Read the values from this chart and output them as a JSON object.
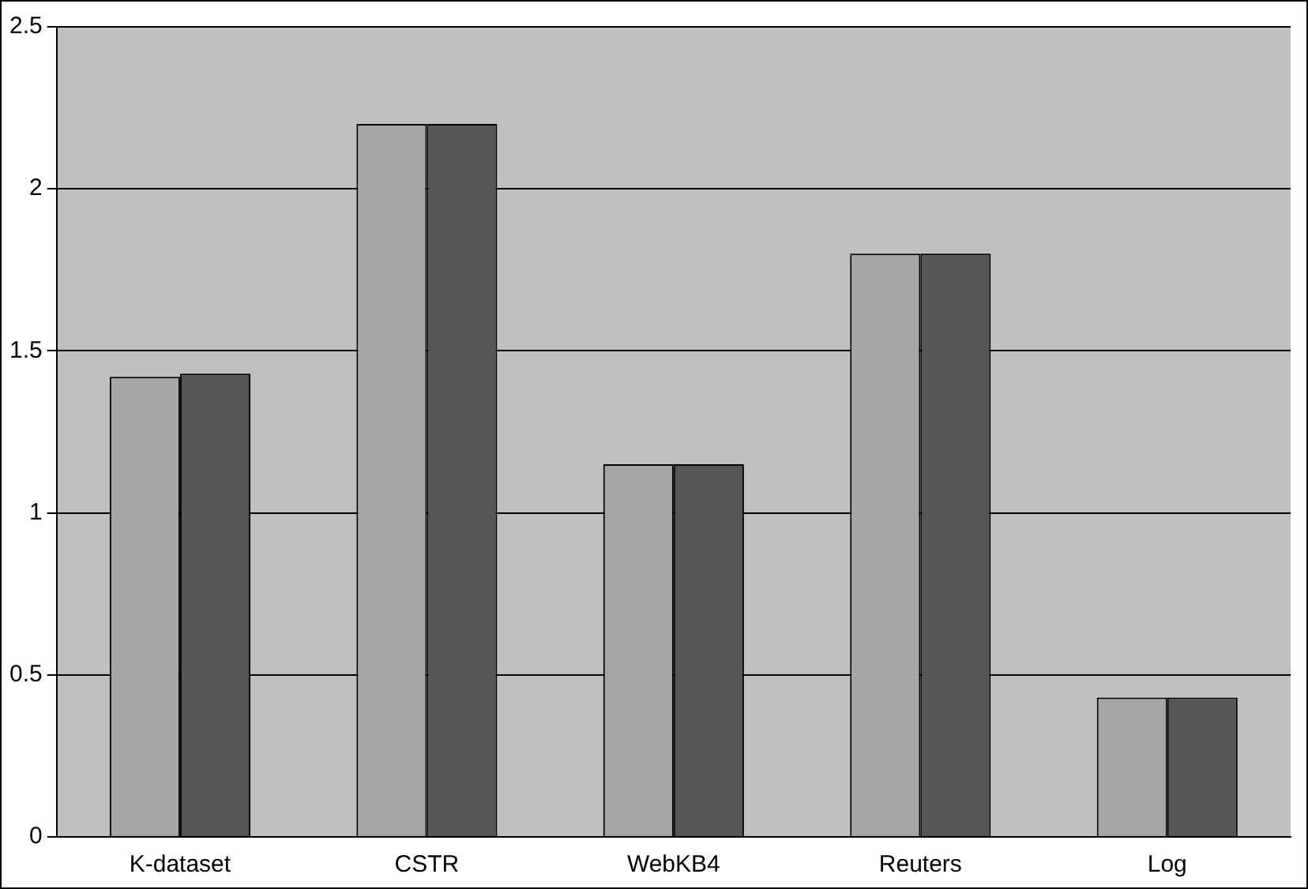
{
  "chart_data": {
    "type": "bar",
    "categories": [
      "K-dataset",
      "CSTR",
      "WebKB4",
      "Reuters",
      "Log"
    ],
    "series": [
      {
        "color": "#a6a6a6",
        "values": [
          1.42,
          2.2,
          1.15,
          1.8,
          0.43
        ]
      },
      {
        "color": "#555555",
        "values": [
          1.43,
          2.2,
          1.15,
          1.8,
          0.43
        ]
      }
    ],
    "ylim": [
      0,
      2.5
    ],
    "yticks": [
      0,
      0.5,
      1,
      1.5,
      2,
      2.5
    ],
    "grid": "y",
    "legend": false
  }
}
